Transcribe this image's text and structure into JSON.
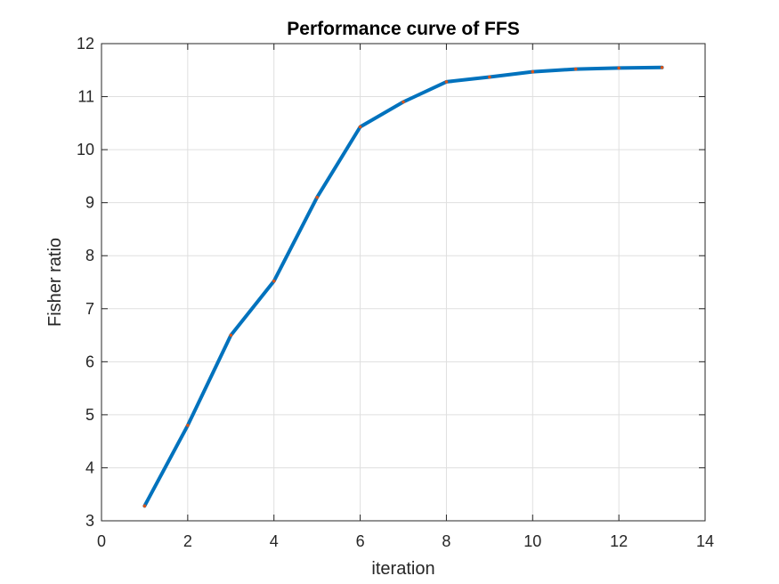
{
  "chart_data": {
    "type": "line",
    "title": "Performance curve of FFS",
    "xlabel": "iteration",
    "ylabel": "Fisher ratio",
    "xlim": [
      0,
      14
    ],
    "ylim": [
      3,
      12
    ],
    "xticks": [
      0,
      2,
      4,
      6,
      8,
      10,
      12,
      14
    ],
    "yticks": [
      3,
      4,
      5,
      6,
      7,
      8,
      9,
      10,
      11,
      12
    ],
    "grid": true,
    "series": [
      {
        "x": [
          1,
          2,
          3,
          4,
          5,
          6,
          7,
          8,
          9,
          10,
          11,
          12,
          13
        ],
        "y": [
          3.28,
          4.8,
          6.5,
          7.52,
          9.1,
          10.43,
          10.9,
          11.28,
          11.37,
          11.47,
          11.52,
          11.54,
          11.55
        ],
        "line_color": "#0072bd",
        "marker_color": "#d95319"
      }
    ]
  }
}
